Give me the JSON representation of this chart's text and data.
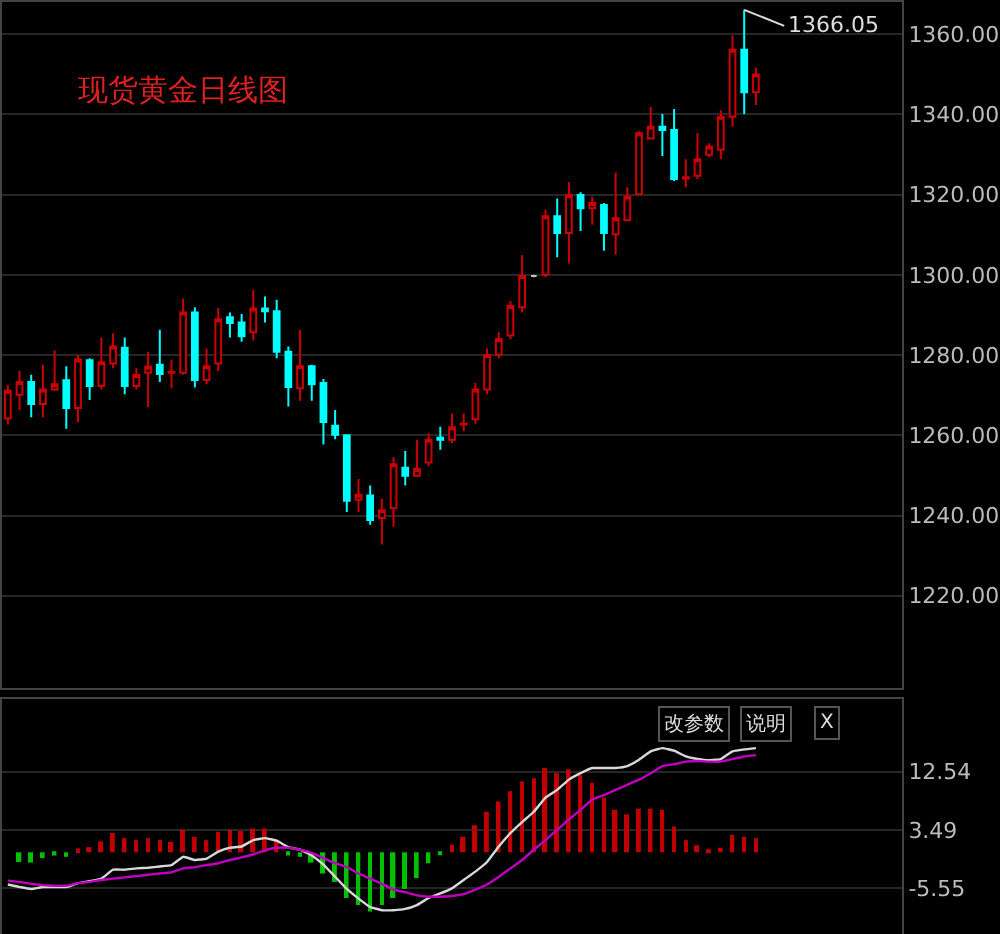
{
  "chart_data": [
    {
      "type": "candlestick",
      "title": "现货黄金日线图",
      "categories": [
        null,
        null,
        null,
        null,
        null,
        null,
        null,
        null,
        null,
        null,
        null,
        null,
        null,
        null,
        null,
        null,
        null,
        null,
        null,
        null,
        null,
        null,
        null,
        null,
        null,
        null,
        null,
        null,
        null,
        null,
        null,
        null,
        null,
        null,
        null,
        null,
        null,
        null,
        null,
        null,
        null,
        null,
        null,
        null,
        null,
        null,
        null,
        null,
        null,
        null,
        null,
        null,
        null,
        null,
        null,
        null,
        null,
        null,
        null,
        null,
        null,
        null,
        null,
        null,
        null,
        null,
        null,
        null,
        null,
        null,
        null,
        null,
        null,
        null,
        null,
        null,
        null
      ],
      "ohlc": [
        [
          1264.2,
          1272.5,
          1262.7,
          1271.1
        ],
        [
          1270.1,
          1276.1,
          1266.3,
          1273.3
        ],
        [
          1273.3,
          1275.1,
          1264.5,
          1267.8
        ],
        [
          1267.8,
          1277.6,
          1264.5,
          1271.4
        ],
        [
          1271.4,
          1281.1,
          1271.1,
          1272.7
        ],
        [
          1273.7,
          1277.2,
          1261.6,
          1266.8
        ],
        [
          1266.8,
          1280.0,
          1263.3,
          1278.9
        ],
        [
          1278.7,
          1279.2,
          1268.8,
          1272.3
        ],
        [
          1272.3,
          1284.4,
          1271.4,
          1278.2
        ],
        [
          1277.9,
          1285.4,
          1276.7,
          1282.1
        ],
        [
          1281.8,
          1284.4,
          1270.2,
          1272.3
        ],
        [
          1272.3,
          1276.7,
          1271.4,
          1275.0
        ],
        [
          1275.6,
          1280.8,
          1267.0,
          1277.1
        ],
        [
          1277.6,
          1286.3,
          1273.3,
          1275.3
        ],
        [
          1275.6,
          1278.9,
          1271.7,
          1275.8
        ],
        [
          1275.6,
          1294.1,
          1275.1,
          1290.6
        ],
        [
          1290.6,
          1291.9,
          1271.9,
          1273.8
        ],
        [
          1273.8,
          1281.6,
          1272.7,
          1277.2
        ],
        [
          1277.9,
          1291.7,
          1276.0,
          1288.9
        ],
        [
          1289.4,
          1290.6,
          1284.4,
          1288.0
        ],
        [
          1288.1,
          1290.2,
          1283.3,
          1284.7
        ],
        [
          1285.7,
          1296.2,
          1283.6,
          1291.6
        ],
        [
          1291.6,
          1294.6,
          1288.1,
          1290.9
        ],
        [
          1290.9,
          1293.8,
          1279.2,
          1280.8
        ],
        [
          1280.8,
          1282.1,
          1267.2,
          1272.0
        ],
        [
          1271.7,
          1286.3,
          1268.6,
          1277.2
        ],
        [
          1277.2,
          1277.6,
          1268.6,
          1272.7
        ],
        [
          1273.0,
          1274.0,
          1257.7,
          1263.3
        ],
        [
          1262.4,
          1266.3,
          1259.0,
          1260.1
        ],
        [
          1260.0,
          1260.0,
          1240.9,
          1243.7
        ],
        [
          1243.9,
          1249.1,
          1240.9,
          1245.2
        ],
        [
          1245.0,
          1247.5,
          1237.7,
          1238.9
        ],
        [
          1239.4,
          1244.2,
          1232.8,
          1241.3
        ],
        [
          1241.8,
          1254.5,
          1237.2,
          1252.8
        ],
        [
          1251.9,
          1256.1,
          1247.5,
          1249.9
        ],
        [
          1249.9,
          1258.9,
          1249.6,
          1251.6
        ],
        [
          1253.2,
          1260.5,
          1252.3,
          1258.9
        ],
        [
          1259.4,
          1262.1,
          1256.4,
          1258.9
        ],
        [
          1258.9,
          1265.4,
          1258.1,
          1262.0
        ],
        [
          1262.7,
          1265.4,
          1261.0,
          1262.9
        ],
        [
          1264.0,
          1273.0,
          1262.9,
          1271.4
        ],
        [
          1271.4,
          1281.6,
          1270.2,
          1280.0
        ],
        [
          1280.0,
          1285.7,
          1279.2,
          1284.0
        ],
        [
          1284.9,
          1293.5,
          1284.0,
          1292.2
        ],
        [
          1291.9,
          1304.9,
          1290.6,
          1299.7
        ],
        [
          1299.7,
          1300.0,
          1299.4,
          1299.7
        ],
        [
          1300.0,
          1316.2,
          1299.4,
          1314.6
        ],
        [
          1314.6,
          1319.0,
          1304.4,
          1310.4
        ],
        [
          1310.4,
          1323.1,
          1302.8,
          1319.9
        ],
        [
          1319.9,
          1320.6,
          1310.9,
          1316.6
        ],
        [
          1316.6,
          1319.5,
          1312.5,
          1317.9
        ],
        [
          1317.4,
          1317.9,
          1306.0,
          1310.4
        ],
        [
          1310.1,
          1325.5,
          1305.0,
          1314.1
        ],
        [
          1313.6,
          1321.8,
          1313.3,
          1319.5
        ],
        [
          1320.1,
          1335.8,
          1319.8,
          1335.3
        ],
        [
          1334.0,
          1341.8,
          1333.7,
          1336.9
        ],
        [
          1336.9,
          1340.1,
          1329.6,
          1336.1
        ],
        [
          1336.1,
          1341.3,
          1323.4,
          1323.9
        ],
        [
          1324.0,
          1328.8,
          1321.8,
          1324.3
        ],
        [
          1324.7,
          1335.3,
          1323.9,
          1328.8
        ],
        [
          1329.9,
          1332.8,
          1329.3,
          1332.0
        ],
        [
          1331.2,
          1341.0,
          1328.8,
          1339.4
        ],
        [
          1339.4,
          1359.7,
          1336.9,
          1356.1
        ],
        [
          1356.1,
          1366.05,
          1340.1,
          1345.5
        ],
        [
          1345.5,
          1351.6,
          1342.3,
          1349.9
        ],
        null,
        null,
        null,
        null,
        null,
        null,
        null,
        null,
        null,
        null,
        null,
        null
      ],
      "colors": [
        "#cc0000",
        "#cc0000",
        "#00ffff",
        "#cc0000",
        "#cc0000",
        "#00ffff",
        "#cc0000",
        "#00ffff",
        "#cc0000",
        "#cc0000",
        "#00ffff",
        "#cc0000",
        "#cc0000",
        "#00ffff",
        "#cc0000",
        "#cc0000",
        "#00ffff",
        "#cc0000",
        "#cc0000",
        "#00ffff",
        "#00ffff",
        "#cc0000",
        "#00ffff",
        "#00ffff",
        "#00ffff",
        "#cc0000",
        "#00ffff",
        "#00ffff",
        "#00ffff",
        "#00ffff",
        "#cc0000",
        "#00ffff",
        "#cc0000",
        "#cc0000",
        "#00ffff",
        "#cc0000",
        "#cc0000",
        "#00ffff",
        "#cc0000",
        "#cc0000",
        "#cc0000",
        "#cc0000",
        "#cc0000",
        "#cc0000",
        "#cc0000",
        "#c0c0c0",
        "#cc0000",
        "#00ffff",
        "#cc0000",
        "#00ffff",
        "#cc0000",
        "#00ffff",
        "#cc0000",
        "#cc0000",
        "#cc0000",
        "#cc0000",
        "#00ffff",
        "#00ffff",
        "#cc0000",
        "#cc0000",
        "#cc0000",
        "#cc0000",
        "#cc0000",
        "#00ffff",
        "#cc0000",
        null,
        null,
        null,
        null,
        null,
        null,
        null,
        null,
        null,
        null,
        null,
        null
      ],
      "ylim": [
        1197,
        1368
      ],
      "yticks": [
        {
          "value": 1220,
          "label": "1220.00"
        },
        {
          "value": 1240,
          "label": "1240.00"
        },
        {
          "value": 1260,
          "label": "1260.00"
        },
        {
          "value": 1280,
          "label": "1280.00"
        },
        {
          "value": 1300,
          "label": "1300.00"
        },
        {
          "value": 1320,
          "label": "1320.00"
        },
        {
          "value": 1340,
          "label": "1340.00"
        },
        {
          "value": 1360,
          "label": "1360.00"
        }
      ],
      "grid": "y",
      "annotations": [
        "1366.05"
      ]
    },
    {
      "type": "bar",
      "categories": [
        null,
        null,
        null,
        null,
        null,
        null,
        null,
        null,
        null,
        null,
        null,
        null,
        null,
        null,
        null,
        null,
        null,
        null,
        null,
        null,
        null,
        null,
        null,
        null,
        null,
        null,
        null,
        null,
        null,
        null,
        null,
        null,
        null,
        null,
        null,
        null,
        null,
        null,
        null,
        null,
        null,
        null,
        null,
        null,
        null,
        null,
        null,
        null,
        null,
        null,
        null,
        null,
        null,
        null,
        null,
        null,
        null,
        null,
        null,
        null,
        null,
        null,
        null,
        null,
        null,
        null,
        null,
        null,
        null,
        null,
        null,
        null,
        null,
        null,
        null,
        null,
        null
      ],
      "series": [
        {
          "type": "bar",
          "values": [
            null,
            -1.5,
            -1.6,
            -0.9,
            -0.5,
            -0.7,
            0.6,
            0.8,
            1.7,
            3.0,
            2.2,
            1.9,
            2.2,
            1.9,
            1.6,
            3.5,
            2.4,
            1.9,
            3.2,
            3.5,
            3.3,
            3.7,
            3.7,
            1.9,
            -0.5,
            -0.7,
            -1.6,
            -3.3,
            -4.6,
            -7.1,
            -8.2,
            -9.2,
            -8.2,
            -7.1,
            -5.7,
            -4.0,
            -1.7,
            -0.3,
            1.2,
            2.4,
            4.2,
            6.3,
            7.9,
            9.5,
            11.0,
            11.5,
            13.1,
            12.3,
            12.9,
            12.0,
            10.8,
            8.5,
            6.6,
            5.9,
            6.8,
            6.8,
            6.6,
            4.0,
            1.9,
            1.1,
            0.4,
            0.7,
            2.7,
            2.4,
            2.2,
            null,
            null,
            null,
            null,
            null,
            null,
            null,
            null,
            null,
            null,
            null,
            null
          ],
          "colors": [
            "#00c000",
            "#00c000",
            "#00c000",
            "#00c000",
            "#00c000",
            "#00c000",
            "#c00000",
            "#c00000",
            "#c00000",
            "#c00000",
            "#c00000",
            "#c00000",
            "#c00000",
            "#c00000",
            "#c00000",
            "#c00000",
            "#c00000",
            "#c00000",
            "#c00000",
            "#c00000",
            "#c00000",
            "#c00000",
            "#c00000",
            "#c00000",
            "#00c000",
            "#00c000",
            "#00c000",
            "#00c000",
            "#00c000",
            "#00c000",
            "#00c000",
            "#00c000",
            "#00c000",
            "#00c000",
            "#00c000",
            "#00c000",
            "#00c000",
            "#00c000",
            "#c00000",
            "#c00000",
            "#c00000",
            "#c00000",
            "#c00000",
            "#c00000",
            "#c00000",
            "#c00000",
            "#c00000",
            "#c00000",
            "#c00000",
            "#c00000",
            "#c00000",
            "#c00000",
            "#c00000",
            "#c00000",
            "#c00000",
            "#c00000",
            "#c00000",
            "#c00000",
            "#c00000",
            "#c00000",
            "#c00000",
            "#c00000",
            "#c00000",
            "#c00000",
            "#c00000",
            "#c00000",
            "#c00000",
            "#c00000",
            "#c00000",
            "#c00000",
            "#c00000",
            "#c00000",
            "#c00000",
            "#c00000",
            "#c00000",
            "#c00000",
            "#c00000"
          ]
        },
        {
          "type": "line",
          "color": "#d8d8d8",
          "values": [
            -5.0,
            -5.4,
            -5.7,
            -5.4,
            -5.4,
            -5.4,
            -4.8,
            -4.5,
            -4.1,
            -2.7,
            -2.7,
            -2.5,
            -2.4,
            -2.2,
            -2.0,
            -0.7,
            -1.2,
            -1.0,
            0.1,
            0.7,
            0.9,
            1.9,
            2.2,
            1.8,
            0.8,
            0.4,
            -0.5,
            -1.9,
            -3.8,
            -5.7,
            -7.2,
            -8.5,
            -9.0,
            -9.0,
            -8.8,
            -8.2,
            -7.1,
            -6.4,
            -5.6,
            -4.3,
            -3.0,
            -1.5,
            0.9,
            3.0,
            4.7,
            6.3,
            8.5,
            9.7,
            11.3,
            12.3,
            13.1,
            13.1,
            13.1,
            13.4,
            14.4,
            15.7,
            16.2,
            15.8,
            14.9,
            14.5,
            14.3,
            14.5,
            15.7,
            16.0,
            16.2,
            null,
            null,
            null,
            null,
            null,
            null,
            null,
            null,
            null,
            null,
            null,
            null
          ]
        },
        {
          "type": "line",
          "color": "#c000c0",
          "values": [
            -4.4,
            -4.6,
            -4.9,
            -5.1,
            -5.2,
            -5.2,
            -4.8,
            -4.6,
            -4.3,
            -4.1,
            -3.9,
            -3.7,
            -3.5,
            -3.3,
            -3.1,
            -2.5,
            -2.3,
            -2.0,
            -1.7,
            -1.2,
            -0.8,
            -0.3,
            0.3,
            0.7,
            0.7,
            0.4,
            -0.1,
            -0.9,
            -1.7,
            -2.3,
            -3.3,
            -4.1,
            -4.9,
            -5.8,
            -6.2,
            -6.7,
            -6.9,
            -6.9,
            -6.8,
            -6.5,
            -5.8,
            -5.0,
            -3.8,
            -2.5,
            -1.2,
            0.4,
            1.9,
            3.5,
            5.1,
            6.6,
            8.2,
            8.9,
            9.7,
            10.5,
            11.3,
            12.3,
            13.4,
            13.7,
            14.1,
            14.2,
            14.1,
            14.1,
            14.5,
            14.9,
            15.1,
            null,
            null,
            null,
            null,
            null,
            null,
            null,
            null,
            null,
            null,
            null,
            null
          ]
        }
      ],
      "ylim": [
        -12.7,
        23.8
      ],
      "yticks": [
        12.54,
        3.49,
        -5.55
      ],
      "grid": "y",
      "annotations": [
        "改参数",
        "说明",
        "X"
      ]
    }
  ]
}
